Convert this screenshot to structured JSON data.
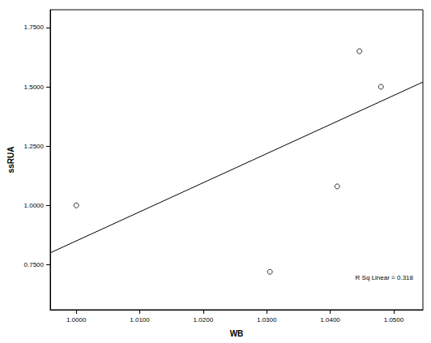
{
  "chart_data": {
    "type": "scatter",
    "x_label": "WB",
    "y_label": "ssRUA",
    "annotation": "R Sq Linear = 0.318",
    "x": [
      1.0,
      1.0305,
      1.0411,
      1.0446,
      1.048
    ],
    "values": [
      1.0,
      0.72,
      1.08,
      1.65,
      1.5
    ],
    "fit_line": {
      "x": [
        0.9959,
        1.0546
      ],
      "y": [
        0.8,
        1.52
      ]
    },
    "color": "#000000",
    "marker": "circle",
    "xlim": [
      0.9959,
      1.0546
    ],
    "xticks": [
      {
        "value": 1.0,
        "label": "1.0000"
      },
      {
        "value": 1.01,
        "label": "1.0100"
      },
      {
        "value": 1.02,
        "label": "1.0200"
      },
      {
        "value": 1.03,
        "label": "1.0300"
      },
      {
        "value": 1.04,
        "label": "1.0400"
      },
      {
        "value": 1.05,
        "label": "1.0500"
      }
    ],
    "ylim": [
      0.56,
      1.825
    ],
    "yticks": [
      {
        "value": 0.75,
        "label": "0.7500"
      },
      {
        "value": 1.0,
        "label": "1.0000"
      },
      {
        "value": 1.25,
        "label": "1.2500"
      },
      {
        "value": 1.5,
        "label": "1.5000"
      },
      {
        "value": 1.75,
        "label": "1.7500"
      }
    ],
    "grid": false
  }
}
